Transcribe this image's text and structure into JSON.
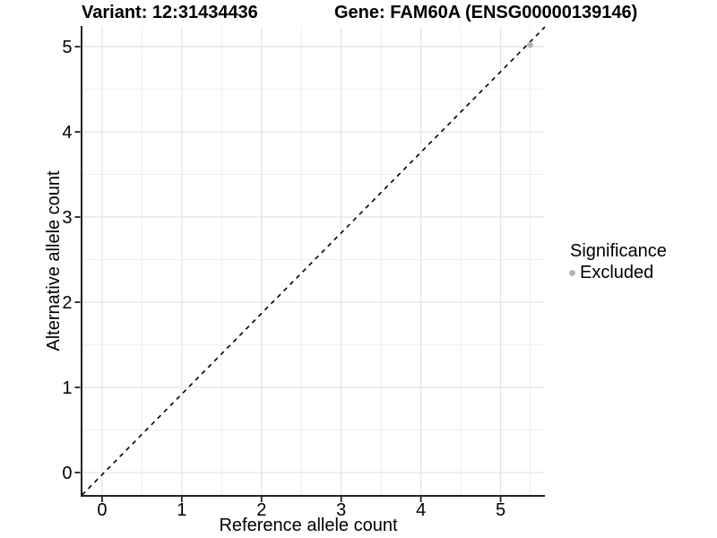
{
  "header": {
    "variant_title": "Variant: 12:31434436",
    "gene_title": "Gene: FAM60A (ENSG00000139146)"
  },
  "legend": {
    "title": "Significance",
    "items": [
      {
        "label": "Excluded",
        "color": "#b5b5b5"
      }
    ]
  },
  "chart_data": {
    "type": "scatter",
    "xlabel": "Reference allele count",
    "ylabel": "Alternative allele count",
    "x_ticks": [
      0,
      1,
      2,
      3,
      4,
      5
    ],
    "y_ticks": [
      0,
      1,
      2,
      3,
      4,
      5
    ],
    "x_minor": [
      0.5,
      1.5,
      2.5,
      3.5,
      4.5,
      5.37
    ],
    "y_minor": [
      0.5,
      1.5,
      2.5,
      3.5,
      4.5
    ],
    "x_range": [
      -0.252,
      5.556
    ],
    "y_range": [
      -0.263,
      5.232
    ],
    "grid": true,
    "legend_position": "right",
    "series": [
      {
        "name": "Excluded",
        "color": "#b5b5b5",
        "points": [
          {
            "x": 5.37,
            "y": 5.02
          }
        ]
      }
    ],
    "reference_line": {
      "kind": "identity",
      "slope": 1,
      "intercept": 0,
      "style": "dashed",
      "color": "#000000"
    }
  },
  "colors": {
    "background": "#ffffff",
    "grid_major": "#e4e4e4",
    "grid_minor": "#efefef",
    "axis": "#222222",
    "text": "#000000"
  }
}
